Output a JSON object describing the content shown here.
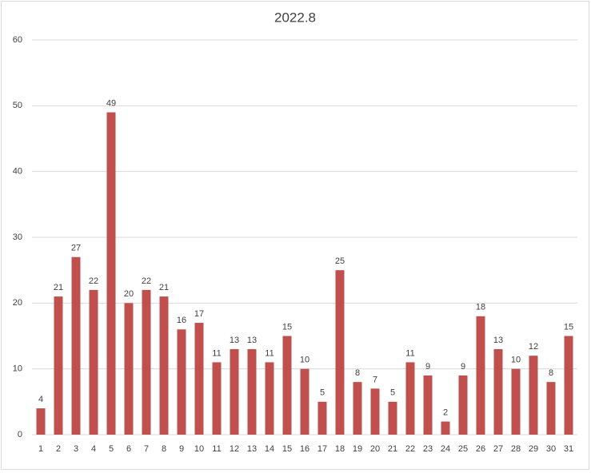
{
  "chart_data": {
    "type": "bar",
    "title": "2022.8",
    "categories": [
      "1",
      "2",
      "3",
      "4",
      "5",
      "6",
      "7",
      "8",
      "9",
      "10",
      "11",
      "12",
      "13",
      "14",
      "15",
      "16",
      "17",
      "18",
      "19",
      "20",
      "21",
      "22",
      "23",
      "24",
      "25",
      "26",
      "27",
      "28",
      "29",
      "30",
      "31"
    ],
    "values": [
      4,
      21,
      27,
      22,
      49,
      20,
      22,
      21,
      16,
      17,
      11,
      13,
      13,
      11,
      15,
      10,
      5,
      25,
      8,
      7,
      5,
      11,
      9,
      2,
      9,
      18,
      13,
      10,
      12,
      8,
      15
    ],
    "color": "#c0504d",
    "ylim": [
      0,
      60
    ],
    "yticks": [
      0,
      10,
      20,
      30,
      40,
      50,
      60
    ],
    "grid": true,
    "data_labels": true
  }
}
